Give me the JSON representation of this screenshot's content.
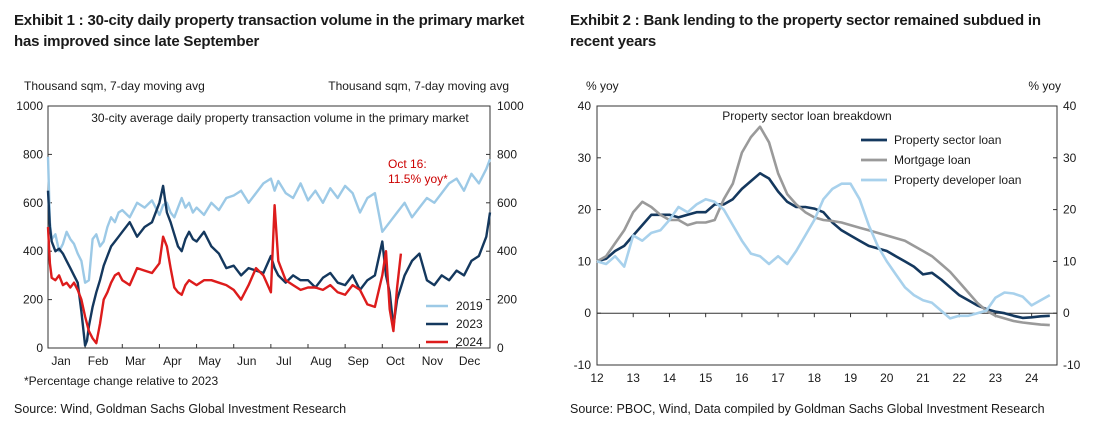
{
  "chart_data": [
    {
      "type": "line",
      "exhibit": "Exhibit 1 : 30-city daily property transaction volume in the primary market has improved since late September",
      "title": "30-city average daily property transaction volume in the primary market",
      "ylabel_left": "Thousand sqm, 7-day moving avg",
      "ylabel_right": "Thousand sqm, 7-day moving avg",
      "ylim": [
        0,
        1000
      ],
      "yticks": [
        0,
        200,
        400,
        600,
        800,
        1000
      ],
      "x_tick_labels": [
        "Jan",
        "Feb",
        "Mar",
        "Apr",
        "May",
        "Jun",
        "Jul",
        "Aug",
        "Sep",
        "Oct",
        "Nov",
        "Dec"
      ],
      "x_unit": "month (1 = Jan)",
      "xlim": [
        1,
        12.9
      ],
      "legend_position": "bottom-right",
      "grid": false,
      "annotation": "Oct 16:\n11.5% yoy*",
      "annotation_color": "#cc0000",
      "footnote": "*Percentage change relative to 2023",
      "source": "Source: Wind, Goldman Sachs Global Investment Research",
      "series": [
        {
          "name": "2019",
          "color": "#9cc9e6",
          "x": [
            1.0,
            1.05,
            1.1,
            1.2,
            1.3,
            1.4,
            1.5,
            1.6,
            1.7,
            1.8,
            1.9,
            2.0,
            2.1,
            2.2,
            2.3,
            2.4,
            2.5,
            2.6,
            2.7,
            2.8,
            2.9,
            3.0,
            3.2,
            3.4,
            3.6,
            3.8,
            4.0,
            4.1,
            4.2,
            4.3,
            4.4,
            4.5,
            4.6,
            4.7,
            4.8,
            4.9,
            5.0,
            5.2,
            5.4,
            5.6,
            5.8,
            6.0,
            6.2,
            6.4,
            6.6,
            6.8,
            7.0,
            7.1,
            7.2,
            7.4,
            7.6,
            7.8,
            8.0,
            8.2,
            8.4,
            8.6,
            8.8,
            9.0,
            9.2,
            9.4,
            9.6,
            9.8,
            10.0,
            10.2,
            10.4,
            10.6,
            10.8,
            11.0,
            11.2,
            11.4,
            11.6,
            11.8,
            12.0,
            12.2,
            12.4,
            12.6,
            12.8,
            12.9
          ],
          "values": [
            790,
            520,
            450,
            470,
            400,
            430,
            480,
            450,
            430,
            390,
            360,
            270,
            280,
            450,
            470,
            420,
            440,
            500,
            540,
            520,
            560,
            570,
            540,
            600,
            580,
            610,
            550,
            590,
            600,
            560,
            540,
            580,
            620,
            580,
            600,
            560,
            580,
            550,
            600,
            570,
            620,
            630,
            650,
            600,
            640,
            680,
            700,
            650,
            690,
            640,
            620,
            680,
            610,
            650,
            600,
            660,
            620,
            670,
            640,
            560,
            620,
            640,
            480,
            520,
            560,
            600,
            540,
            580,
            620,
            600,
            640,
            680,
            700,
            650,
            720,
            680,
            740,
            780
          ]
        },
        {
          "name": "2023",
          "color": "#14385e",
          "x": [
            1.0,
            1.05,
            1.1,
            1.2,
            1.3,
            1.4,
            1.5,
            1.6,
            1.7,
            1.8,
            1.9,
            2.0,
            2.05,
            2.1,
            2.2,
            2.3,
            2.4,
            2.5,
            2.6,
            2.7,
            2.8,
            2.9,
            3.0,
            3.2,
            3.4,
            3.6,
            3.8,
            4.0,
            4.1,
            4.2,
            4.3,
            4.4,
            4.5,
            4.6,
            4.7,
            4.8,
            4.9,
            5.0,
            5.2,
            5.4,
            5.6,
            5.8,
            6.0,
            6.2,
            6.4,
            6.6,
            6.8,
            7.0,
            7.1,
            7.2,
            7.4,
            7.6,
            7.8,
            8.0,
            8.2,
            8.4,
            8.6,
            8.8,
            9.0,
            9.2,
            9.4,
            9.6,
            9.8,
            10.0,
            10.1,
            10.2,
            10.3,
            10.4,
            10.6,
            10.8,
            11.0,
            11.2,
            11.4,
            11.6,
            11.8,
            12.0,
            12.2,
            12.4,
            12.6,
            12.8,
            12.9
          ],
          "values": [
            650,
            500,
            440,
            400,
            410,
            390,
            360,
            330,
            300,
            270,
            150,
            10,
            30,
            90,
            170,
            230,
            280,
            340,
            380,
            420,
            440,
            460,
            480,
            520,
            460,
            500,
            520,
            600,
            670,
            560,
            520,
            470,
            420,
            400,
            450,
            480,
            450,
            440,
            480,
            420,
            390,
            330,
            340,
            300,
            330,
            320,
            310,
            380,
            330,
            300,
            270,
            300,
            280,
            280,
            250,
            290,
            310,
            270,
            260,
            300,
            240,
            280,
            300,
            440,
            300,
            230,
            90,
            200,
            300,
            360,
            390,
            280,
            260,
            300,
            280,
            320,
            300,
            360,
            380,
            460,
            560
          ]
        },
        {
          "name": "2024",
          "color": "#dd1c1c",
          "x": [
            1.0,
            1.05,
            1.1,
            1.2,
            1.3,
            1.4,
            1.5,
            1.6,
            1.7,
            1.8,
            1.9,
            2.0,
            2.1,
            2.2,
            2.3,
            2.4,
            2.5,
            2.6,
            2.7,
            2.8,
            2.9,
            3.0,
            3.2,
            3.4,
            3.6,
            3.8,
            4.0,
            4.1,
            4.2,
            4.3,
            4.4,
            4.5,
            4.6,
            4.7,
            4.8,
            4.9,
            5.0,
            5.2,
            5.4,
            5.6,
            5.8,
            6.0,
            6.2,
            6.4,
            6.6,
            6.8,
            7.0,
            7.1,
            7.2,
            7.4,
            7.6,
            7.8,
            8.0,
            8.2,
            8.4,
            8.6,
            8.8,
            9.0,
            9.2,
            9.4,
            9.6,
            9.8,
            10.0,
            10.1,
            10.2,
            10.3,
            10.4,
            10.5
          ],
          "values": [
            500,
            350,
            290,
            280,
            300,
            260,
            270,
            250,
            270,
            240,
            200,
            130,
            70,
            40,
            20,
            100,
            200,
            230,
            270,
            300,
            310,
            280,
            260,
            330,
            320,
            310,
            350,
            460,
            420,
            330,
            250,
            230,
            220,
            260,
            280,
            270,
            260,
            280,
            280,
            270,
            260,
            240,
            200,
            260,
            330,
            300,
            230,
            590,
            360,
            280,
            260,
            240,
            250,
            250,
            240,
            260,
            230,
            220,
            260,
            240,
            180,
            170,
            300,
            400,
            160,
            70,
            250,
            390
          ]
        }
      ]
    },
    {
      "type": "line",
      "exhibit": "Exhibit 2 : Bank lending to the property sector remained subdued in recent years",
      "title": "Property sector loan breakdown",
      "ylabel_left": "% yoy",
      "ylabel_right": "% yoy",
      "ylim": [
        -10,
        40
      ],
      "yticks": [
        -10,
        0,
        10,
        20,
        30,
        40
      ],
      "x_tick_labels": [
        "12",
        "13",
        "14",
        "15",
        "16",
        "17",
        "18",
        "19",
        "20",
        "21",
        "22",
        "23",
        "24"
      ],
      "xlim": [
        2012,
        2024.7
      ],
      "legend_position": "top-right",
      "grid": false,
      "source": "Source: PBOC, Wind, Data compiled by Goldman Sachs Global Investment Research",
      "series": [
        {
          "name": "Property sector loan",
          "color": "#14385e",
          "x": [
            2012.0,
            2012.25,
            2012.5,
            2012.75,
            2013.0,
            2013.25,
            2013.5,
            2013.75,
            2014.0,
            2014.25,
            2014.5,
            2014.75,
            2015.0,
            2015.25,
            2015.5,
            2015.75,
            2016.0,
            2016.25,
            2016.5,
            2016.75,
            2017.0,
            2017.25,
            2017.5,
            2017.75,
            2018.0,
            2018.25,
            2018.5,
            2018.75,
            2019.0,
            2019.25,
            2019.5,
            2019.75,
            2020.0,
            2020.25,
            2020.5,
            2020.75,
            2021.0,
            2021.25,
            2021.5,
            2021.75,
            2022.0,
            2022.25,
            2022.5,
            2022.75,
            2023.0,
            2023.25,
            2023.5,
            2023.75,
            2024.0,
            2024.25,
            2024.5
          ],
          "values": [
            10,
            10.5,
            12,
            13,
            15,
            17,
            19,
            19,
            19,
            18.5,
            19,
            19.5,
            19.5,
            21,
            21,
            22,
            24,
            25.5,
            27,
            26,
            23.5,
            21.5,
            20.5,
            20.5,
            20.2,
            19.5,
            17.5,
            16,
            15,
            14,
            13,
            12.5,
            12,
            11,
            10,
            9,
            7.5,
            7.8,
            6.5,
            5,
            3.5,
            2.5,
            1.5,
            0.8,
            0.3,
            0,
            -0.5,
            -0.9,
            -0.8,
            -0.6,
            -0.5
          ]
        },
        {
          "name": "Mortgage loan",
          "color": "#9a9a9a",
          "x": [
            2012.0,
            2012.25,
            2012.5,
            2012.75,
            2013.0,
            2013.25,
            2013.5,
            2013.75,
            2014.0,
            2014.25,
            2014.5,
            2014.75,
            2015.0,
            2015.25,
            2015.5,
            2015.75,
            2016.0,
            2016.25,
            2016.5,
            2016.75,
            2017.0,
            2017.25,
            2017.5,
            2017.75,
            2018.0,
            2018.25,
            2018.5,
            2018.75,
            2019.0,
            2019.25,
            2019.5,
            2019.75,
            2020.0,
            2020.25,
            2020.5,
            2020.75,
            2021.0,
            2021.25,
            2021.5,
            2021.75,
            2022.0,
            2022.25,
            2022.5,
            2022.75,
            2023.0,
            2023.25,
            2023.5,
            2023.75,
            2024.0,
            2024.25,
            2024.5
          ],
          "values": [
            10,
            11,
            13.5,
            16,
            19.5,
            21.5,
            20.5,
            19,
            18,
            18,
            17,
            17.5,
            17.5,
            18,
            22,
            25,
            31,
            34,
            36,
            33,
            27,
            23,
            21,
            19.5,
            18.5,
            18,
            17.8,
            17.5,
            17,
            16.5,
            16,
            15.5,
            15,
            14.5,
            14,
            13,
            12,
            11,
            9.5,
            8,
            6,
            4,
            2,
            0.5,
            -0.5,
            -1,
            -1.5,
            -1.8,
            -2,
            -2.2,
            -2.3
          ]
        },
        {
          "name": "Property developer loan",
          "color": "#a8d1ec",
          "x": [
            2012.0,
            2012.25,
            2012.5,
            2012.75,
            2013.0,
            2013.25,
            2013.5,
            2013.75,
            2014.0,
            2014.25,
            2014.5,
            2014.75,
            2015.0,
            2015.25,
            2015.5,
            2015.75,
            2016.0,
            2016.25,
            2016.5,
            2016.75,
            2017.0,
            2017.25,
            2017.5,
            2017.75,
            2018.0,
            2018.25,
            2018.5,
            2018.75,
            2019.0,
            2019.25,
            2019.5,
            2019.75,
            2020.0,
            2020.25,
            2020.5,
            2020.75,
            2021.0,
            2021.25,
            2021.5,
            2021.75,
            2022.0,
            2022.25,
            2022.5,
            2022.75,
            2023.0,
            2023.25,
            2023.5,
            2023.75,
            2024.0,
            2024.25,
            2024.5
          ],
          "values": [
            10,
            9.5,
            11,
            9,
            15,
            14,
            15.5,
            16,
            18,
            20.5,
            19.5,
            21,
            22,
            21.5,
            20,
            17,
            14,
            11.5,
            11,
            9.5,
            11,
            9.5,
            12,
            15,
            18,
            22,
            24,
            25,
            25,
            22,
            17,
            13,
            10,
            7.5,
            5,
            3.5,
            2.5,
            2,
            0.5,
            -1,
            -0.5,
            -0.5,
            0,
            0.5,
            3,
            4,
            3.8,
            3.2,
            1.5,
            2.5,
            3.5
          ]
        }
      ]
    }
  ]
}
